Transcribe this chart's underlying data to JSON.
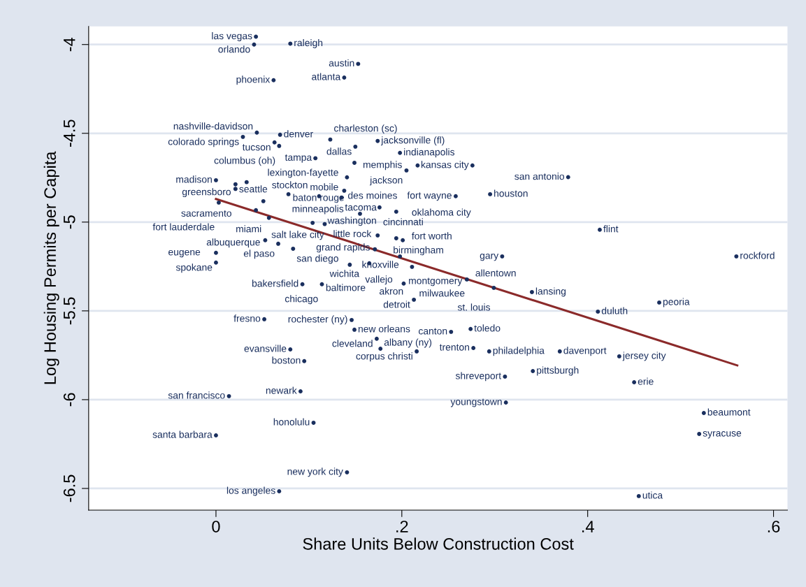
{
  "chart_data": {
    "type": "scatter",
    "xlabel": "Share Units Below Construction Cost",
    "ylabel": "Log Housing Permits per Capita",
    "xlim": [
      -0.137,
      0.615
    ],
    "ylim": [
      -6.622,
      -3.898
    ],
    "xticks": [
      {
        "value": 0,
        "label": "0"
      },
      {
        "value": 0.2,
        "label": ".2"
      },
      {
        "value": 0.4,
        "label": ".4"
      },
      {
        "value": 0.6,
        "label": ".6"
      }
    ],
    "yticks": [
      {
        "value": -4,
        "label": "-4"
      },
      {
        "value": -4.5,
        "label": "-4.5"
      },
      {
        "value": -5,
        "label": "-5"
      },
      {
        "value": -5.5,
        "label": "-5.5"
      },
      {
        "value": -6,
        "label": "-6"
      },
      {
        "value": -6.5,
        "label": "-6.5"
      }
    ],
    "grid": "y",
    "legend": false,
    "marker": "circle",
    "series": [
      {
        "color": "#1a2f5e",
        "x": [
          0.043,
          0.041,
          0.08,
          0.153,
          0.138,
          0.062,
          0.044,
          0.069,
          0.029,
          0.123,
          0.174,
          0.063,
          0.068,
          0.15,
          0.198,
          0.107,
          0.149,
          0.217,
          0.276,
          0.205,
          0.379,
          0.141,
          0.0,
          0.033,
          0.021,
          0.021,
          0.138,
          0.078,
          0.111,
          0.135,
          0.258,
          0.295,
          0.003,
          0.051,
          0.043,
          0.057,
          0.176,
          0.194,
          0.155,
          0.104,
          0.117,
          0.053,
          0.067,
          0.174,
          0.194,
          0.201,
          0.083,
          0.171,
          0.198,
          0.165,
          0.144,
          0.0,
          0.0,
          0.211,
          0.308,
          0.27,
          0.202,
          0.299,
          0.34,
          0.213,
          0.411,
          0.477,
          0.413,
          0.56,
          0.093,
          0.114,
          0.052,
          0.146,
          0.149,
          0.173,
          0.08,
          0.177,
          0.095,
          0.091,
          0.014,
          0.105,
          0.0,
          0.141,
          0.068,
          0.253,
          0.274,
          0.216,
          0.277,
          0.294,
          0.37,
          0.434,
          0.341,
          0.311,
          0.45,
          0.312,
          0.525,
          0.52,
          0.455
        ],
        "values": [
          -3.956,
          -4.0,
          -3.995,
          -4.109,
          -4.186,
          -4.201,
          -4.496,
          -4.508,
          -4.52,
          -4.535,
          -4.543,
          -4.551,
          -4.571,
          -4.575,
          -4.61,
          -4.64,
          -4.666,
          -4.681,
          -4.681,
          -4.709,
          -4.747,
          -4.748,
          -4.764,
          -4.775,
          -4.787,
          -4.813,
          -4.823,
          -4.843,
          -4.854,
          -4.862,
          -4.854,
          -4.843,
          -4.89,
          -4.882,
          -4.933,
          -4.976,
          -4.917,
          -4.941,
          -4.953,
          -5.004,
          -5.011,
          -5.102,
          -5.122,
          -5.075,
          -5.091,
          -5.102,
          -5.15,
          -5.153,
          -5.193,
          -5.232,
          -5.24,
          -5.173,
          -5.228,
          -5.252,
          -5.193,
          -5.323,
          -5.346,
          -5.37,
          -5.394,
          -5.437,
          -5.504,
          -5.453,
          -5.043,
          -5.193,
          -5.35,
          -5.35,
          -5.547,
          -5.551,
          -5.606,
          -5.657,
          -5.717,
          -5.713,
          -5.783,
          -5.953,
          -5.98,
          -6.13,
          -6.201,
          -6.409,
          -6.516,
          -5.618,
          -5.602,
          -5.728,
          -5.709,
          -5.728,
          -5.728,
          -5.756,
          -5.839,
          -5.87,
          -5.902,
          -6.016,
          -6.075,
          -6.193,
          -6.543
        ]
      },
      {
        "type": "line",
        "color": "#8b2a2a",
        "marker": "none",
        "x": [
          0.0,
          0.561
        ],
        "values": [
          -4.87,
          -5.807
        ]
      }
    ],
    "annotations": [
      {
        "text": "las vegas",
        "x": 0.043,
        "y": -3.956
      },
      {
        "text": "orlando",
        "x": 0.041,
        "y": -4.0
      },
      {
        "text": "raleigh",
        "x": 0.08,
        "y": -3.995
      },
      {
        "text": "austin",
        "x": 0.153,
        "y": -4.109
      },
      {
        "text": "atlanta",
        "x": 0.138,
        "y": -4.186
      },
      {
        "text": "phoenix",
        "x": 0.062,
        "y": -4.201
      },
      {
        "text": "nashville-davidson",
        "x": 0.044,
        "y": -4.496
      },
      {
        "text": "denver",
        "x": 0.069,
        "y": -4.508
      },
      {
        "text": "colorado springs",
        "x": 0.029,
        "y": -4.52
      },
      {
        "text": "charleston (sc)",
        "x": 0.123,
        "y": -4.535
      },
      {
        "text": "jacksonville (fl)",
        "x": 0.174,
        "y": -4.543
      },
      {
        "text": "tucson",
        "x": 0.063,
        "y": -4.551
      },
      {
        "text": "columbus (oh)",
        "x": 0.068,
        "y": -4.571
      },
      {
        "text": "dallas",
        "x": 0.15,
        "y": -4.575
      },
      {
        "text": "indianapolis",
        "x": 0.198,
        "y": -4.61
      },
      {
        "text": "tampa",
        "x": 0.107,
        "y": -4.64
      },
      {
        "text": "lexington-fayette",
        "x": 0.149,
        "y": -4.666
      },
      {
        "text": "memphis",
        "x": 0.217,
        "y": -4.681
      },
      {
        "text": "kansas city",
        "x": 0.276,
        "y": -4.681
      },
      {
        "text": "jackson",
        "x": 0.205,
        "y": -4.709
      },
      {
        "text": "san antonio",
        "x": 0.379,
        "y": -4.747
      },
      {
        "text": "mobile",
        "x": 0.141,
        "y": -4.748
      },
      {
        "text": "madison",
        "x": 0.0,
        "y": -4.764
      },
      {
        "text": "greensboro",
        "x": 0.033,
        "y": -4.775
      },
      {
        "text": "seattle",
        "x": 0.021,
        "y": -4.787
      },
      {
        "text": "sacramento",
        "x": 0.021,
        "y": -4.813
      },
      {
        "text": "des moines",
        "x": 0.138,
        "y": -4.823
      },
      {
        "text": "minneapolis",
        "x": 0.078,
        "y": -4.843
      },
      {
        "text": "washington",
        "x": 0.111,
        "y": -4.854
      },
      {
        "text": "tacoma",
        "x": 0.135,
        "y": -4.862
      },
      {
        "text": "fort wayne",
        "x": 0.258,
        "y": -4.854
      },
      {
        "text": "houston",
        "x": 0.295,
        "y": -4.843
      },
      {
        "text": "fort lauderdale",
        "x": 0.003,
        "y": -4.89
      },
      {
        "text": "stockton",
        "x": 0.051,
        "y": -4.882
      },
      {
        "text": "salt lake city",
        "x": 0.043,
        "y": -4.933
      },
      {
        "text": "albuquerque",
        "x": 0.057,
        "y": -4.976
      },
      {
        "text": "cincinnati",
        "x": 0.176,
        "y": -4.917
      },
      {
        "text": "fort worth",
        "x": 0.194,
        "y": -4.941
      },
      {
        "text": "baton rouge",
        "x": 0.155,
        "y": -4.953
      },
      {
        "text": "grand rapids",
        "x": 0.104,
        "y": -5.004
      },
      {
        "text": "little rock",
        "x": 0.117,
        "y": -5.011
      },
      {
        "text": "miami",
        "x": 0.053,
        "y": -5.102
      },
      {
        "text": "el paso",
        "x": 0.067,
        "y": -5.122
      },
      {
        "text": "birmingham",
        "x": 0.174,
        "y": -5.075
      },
      {
        "text": "oklahoma city",
        "x": 0.194,
        "y": -5.091
      },
      {
        "text": "knoxville",
        "x": 0.201,
        "y": -5.102
      },
      {
        "text": "san diego",
        "x": 0.083,
        "y": -5.15
      },
      {
        "text": "wichita",
        "x": 0.171,
        "y": -5.153
      },
      {
        "text": "montgomery",
        "x": 0.198,
        "y": -5.193
      },
      {
        "text": "baltimore",
        "x": 0.165,
        "y": -5.232
      },
      {
        "text": "vallejo",
        "x": 0.144,
        "y": -5.24
      },
      {
        "text": "eugene",
        "x": 0.0,
        "y": -5.173
      },
      {
        "text": "spokane",
        "x": 0.0,
        "y": -5.228
      },
      {
        "text": "akron",
        "x": 0.211,
        "y": -5.252
      },
      {
        "text": "gary",
        "x": 0.308,
        "y": -5.193
      },
      {
        "text": "allentown",
        "x": 0.27,
        "y": -5.323
      },
      {
        "text": "milwaukee",
        "x": 0.202,
        "y": -5.346
      },
      {
        "text": "st. louis",
        "x": 0.299,
        "y": -5.37
      },
      {
        "text": "lansing",
        "x": 0.34,
        "y": -5.394
      },
      {
        "text": "detroit",
        "x": 0.213,
        "y": -5.437
      },
      {
        "text": "duluth",
        "x": 0.411,
        "y": -5.504
      },
      {
        "text": "peoria",
        "x": 0.477,
        "y": -5.453
      },
      {
        "text": "flint",
        "x": 0.413,
        "y": -5.043
      },
      {
        "text": "rockford",
        "x": 0.56,
        "y": -5.193
      },
      {
        "text": "bakersfield",
        "x": 0.093,
        "y": -5.35
      },
      {
        "text": "chicago",
        "x": 0.114,
        "y": -5.35
      },
      {
        "text": "fresno",
        "x": 0.052,
        "y": -5.547
      },
      {
        "text": "rochester (ny)",
        "x": 0.146,
        "y": -5.551
      },
      {
        "text": "new orleans",
        "x": 0.149,
        "y": -5.606
      },
      {
        "text": "cleveland",
        "x": 0.173,
        "y": -5.657
      },
      {
        "text": "evansville",
        "x": 0.08,
        "y": -5.717
      },
      {
        "text": "albany (ny)",
        "x": 0.177,
        "y": -5.713
      },
      {
        "text": "boston",
        "x": 0.095,
        "y": -5.783
      },
      {
        "text": "newark",
        "x": 0.091,
        "y": -5.953
      },
      {
        "text": "san francisco",
        "x": 0.014,
        "y": -5.98
      },
      {
        "text": "honolulu",
        "x": 0.105,
        "y": -6.13
      },
      {
        "text": "santa barbara",
        "x": 0.0,
        "y": -6.201
      },
      {
        "text": "new york city",
        "x": 0.141,
        "y": -6.409
      },
      {
        "text": "los angeles",
        "x": 0.068,
        "y": -6.516
      },
      {
        "text": "canton",
        "x": 0.253,
        "y": -5.618
      },
      {
        "text": "toledo",
        "x": 0.274,
        "y": -5.602
      },
      {
        "text": "corpus christi",
        "x": 0.216,
        "y": -5.728
      },
      {
        "text": "trenton",
        "x": 0.277,
        "y": -5.709
      },
      {
        "text": "philadelphia",
        "x": 0.294,
        "y": -5.728
      },
      {
        "text": "davenport",
        "x": 0.37,
        "y": -5.728
      },
      {
        "text": "jersey city",
        "x": 0.434,
        "y": -5.756
      },
      {
        "text": "pittsburgh",
        "x": 0.341,
        "y": -5.839
      },
      {
        "text": "shreveport",
        "x": 0.311,
        "y": -5.87
      },
      {
        "text": "erie",
        "x": 0.45,
        "y": -5.902
      },
      {
        "text": "youngstown",
        "x": 0.312,
        "y": -6.016
      },
      {
        "text": "beaumont",
        "x": 0.525,
        "y": -6.075
      },
      {
        "text": "syracuse",
        "x": 0.52,
        "y": -6.193
      },
      {
        "text": "utica",
        "x": 0.455,
        "y": -6.543
      }
    ]
  }
}
